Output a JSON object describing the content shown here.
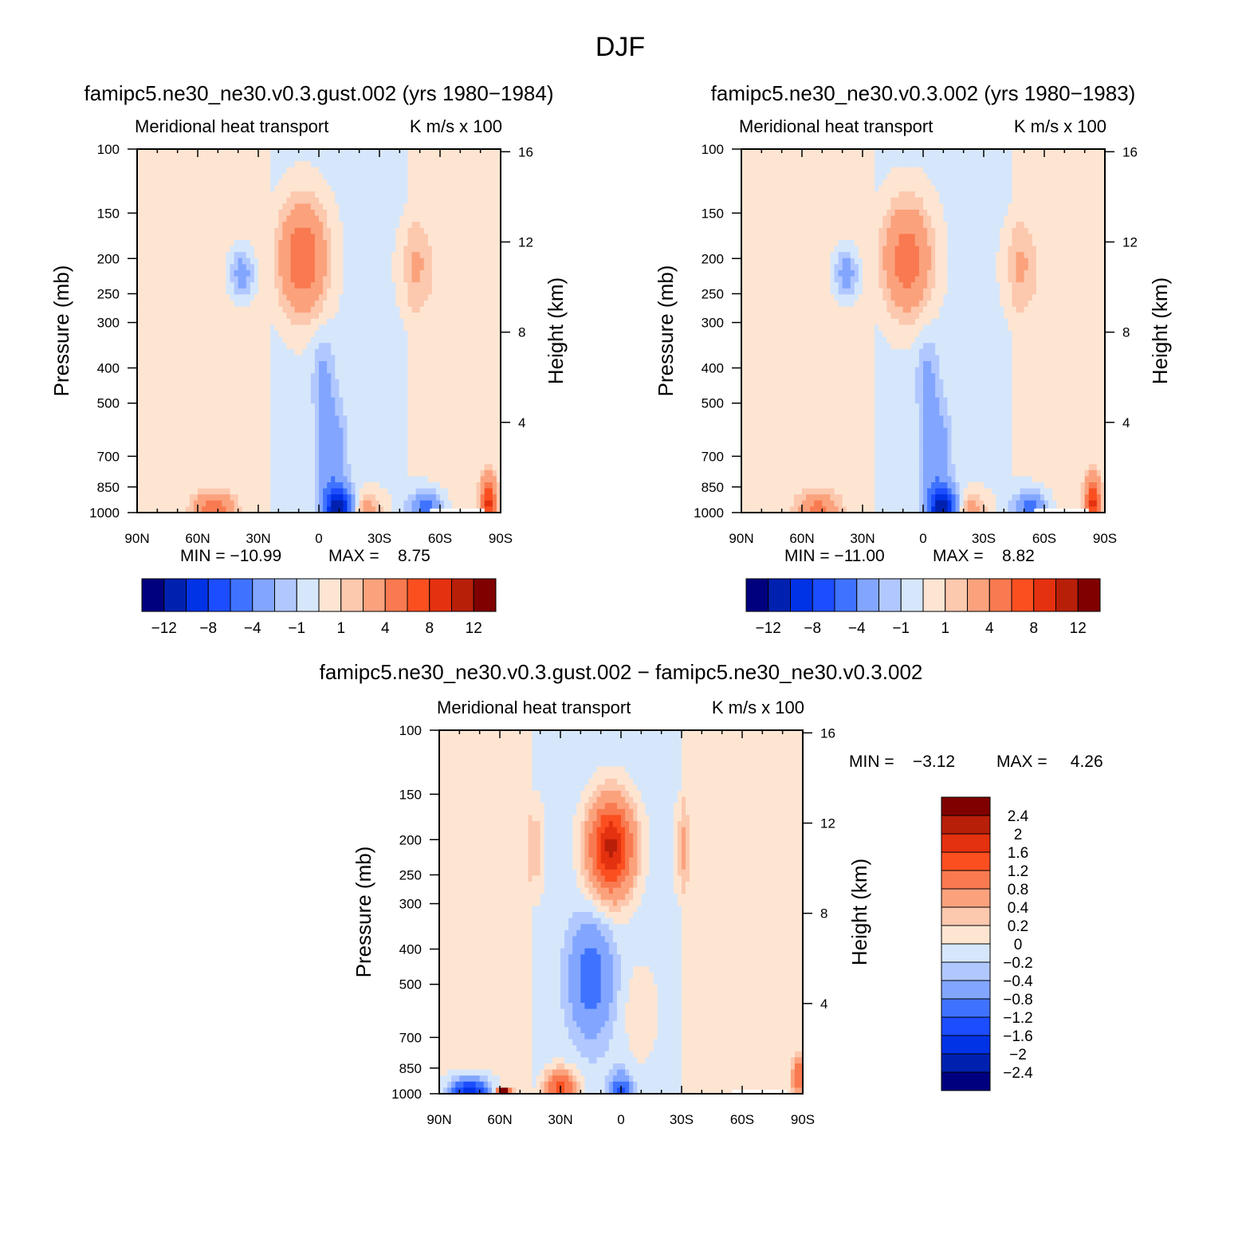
{
  "figure": {
    "title": "DJF"
  },
  "colors": {
    "main_levels": [
      "#00007f",
      "#0021b0",
      "#0032e6",
      "#1c4dff",
      "#3f73ff",
      "#82a6ff",
      "#b1c8ff",
      "#d6e7fb",
      "#fde5d2",
      "#fcc8ae",
      "#fba27d",
      "#f97a50",
      "#fb4f20",
      "#e4310f",
      "#b81f09",
      "#800000"
    ],
    "diff_levels": [
      "#00007f",
      "#0021b0",
      "#0032e6",
      "#1c4dff",
      "#3f73ff",
      "#82a6ff",
      "#b1c8ff",
      "#d6e7fb",
      "#fde5d2",
      "#fcc8ae",
      "#fba27d",
      "#f97a50",
      "#fb4f20",
      "#e4310f",
      "#b81f09",
      "#800000"
    ]
  },
  "chart_data": [
    {
      "type": "heatmap",
      "title": "famipc5.ne30_ne30.v0.3.gust.002 (yrs 1980−1984)",
      "subtitle_left": "Meridional heat transport",
      "subtitle_right": "K m/s x 100",
      "ylabel": "Pressure (mb)",
      "y2label": "Height (km)",
      "x_ticks": [
        "90N",
        "60N",
        "30N",
        "0",
        "30S",
        "60S",
        "90S"
      ],
      "y_ticks": [
        "100",
        "150",
        "200",
        "250",
        "300",
        "400",
        "500",
        "700",
        "850",
        "1000"
      ],
      "y2_ticks": [
        "16",
        "12",
        "8",
        "4"
      ],
      "xlim": [
        90,
        -90
      ],
      "ylim": [
        1000,
        100
      ],
      "y_scale": "log",
      "min_label": "MIN = −10.99",
      "max_label": "MAX =    8.75",
      "colorbar": {
        "orientation": "horizontal",
        "labels": [
          "−12",
          "−8",
          "−4",
          "−1",
          "1",
          "4",
          "8",
          "12"
        ]
      },
      "features": [
        {
          "lat": -10,
          "p": 980,
          "value": -10.99
        },
        {
          "lat": 8,
          "p": 200,
          "value": 6
        },
        {
          "lat": 52,
          "p": 990,
          "value": 5
        },
        {
          "lat": -23,
          "p": 980,
          "value": 3
        },
        {
          "lat": -48,
          "p": 200,
          "value": 2
        },
        {
          "lat": -53,
          "p": 960,
          "value": -5
        },
        {
          "lat": -82,
          "p": 950,
          "value": 8.75
        }
      ]
    },
    {
      "type": "heatmap",
      "title": "famipc5.ne30_ne30.v0.3.002 (yrs 1980−1983)",
      "subtitle_left": "Meridional heat transport",
      "subtitle_right": "K m/s x 100",
      "ylabel": "Pressure (mb)",
      "y2label": "Height (km)",
      "x_ticks": [
        "90N",
        "60N",
        "30N",
        "0",
        "30S",
        "60S",
        "90S"
      ],
      "y_ticks": [
        "100",
        "150",
        "200",
        "250",
        "300",
        "400",
        "500",
        "700",
        "850",
        "1000"
      ],
      "y2_ticks": [
        "16",
        "12",
        "8",
        "4"
      ],
      "xlim": [
        90,
        -90
      ],
      "ylim": [
        1000,
        100
      ],
      "y_scale": "log",
      "min_label": "MIN = −11.00",
      "max_label": "MAX =    8.82",
      "colorbar": {
        "orientation": "horizontal",
        "labels": [
          "−12",
          "−8",
          "−4",
          "−1",
          "1",
          "4",
          "8",
          "12"
        ]
      },
      "features": [
        {
          "lat": -10,
          "p": 980,
          "value": -11.0
        },
        {
          "lat": 8,
          "p": 200,
          "value": 5.5
        },
        {
          "lat": 52,
          "p": 990,
          "value": 4.5
        },
        {
          "lat": -23,
          "p": 980,
          "value": 3
        },
        {
          "lat": -48,
          "p": 200,
          "value": 2
        },
        {
          "lat": -53,
          "p": 960,
          "value": -5
        },
        {
          "lat": -82,
          "p": 950,
          "value": 8.82
        }
      ]
    },
    {
      "type": "heatmap",
      "title": "famipc5.ne30_ne30.v0.3.gust.002 − famipc5.ne30_ne30.v0.3.002",
      "subtitle_left": "Meridional heat transport",
      "subtitle_right": "K m/s x 100",
      "ylabel": "Pressure (mb)",
      "y2label": "Height (km)",
      "x_ticks": [
        "90N",
        "60N",
        "30N",
        "0",
        "30S",
        "60S",
        "90S"
      ],
      "y_ticks": [
        "100",
        "150",
        "200",
        "250",
        "300",
        "400",
        "500",
        "700",
        "850",
        "1000"
      ],
      "y2_ticks": [
        "16",
        "12",
        "8",
        "4"
      ],
      "xlim": [
        90,
        -90
      ],
      "ylim": [
        1000,
        100
      ],
      "y_scale": "log",
      "min_label": "MIN =    −3.12",
      "max_label": "MAX =     4.26",
      "colorbar": {
        "orientation": "vertical",
        "labels": [
          "2.4",
          "2",
          "1.6",
          "1.2",
          "0.8",
          "0.4",
          "0.2",
          "0",
          "−0.2",
          "−0.4",
          "−0.8",
          "−1.2",
          "−1.6",
          "−2",
          "−2.4"
        ]
      },
      "features": [
        {
          "lat": 5,
          "p": 200,
          "value": 2.2
        },
        {
          "lat": -30,
          "p": 200,
          "value": 0.5
        },
        {
          "lat": 40,
          "p": 210,
          "value": 0.5
        },
        {
          "lat": 15,
          "p": 450,
          "value": -1.0
        },
        {
          "lat": 30,
          "p": 960,
          "value": 1.5
        },
        {
          "lat": 0,
          "p": 980,
          "value": -1.2
        },
        {
          "lat": 75,
          "p": 985,
          "value": -2.0
        },
        {
          "lat": 60,
          "p": 995,
          "value": 4.26
        },
        {
          "lat": -88,
          "p": 900,
          "value": 1.2
        }
      ]
    }
  ]
}
